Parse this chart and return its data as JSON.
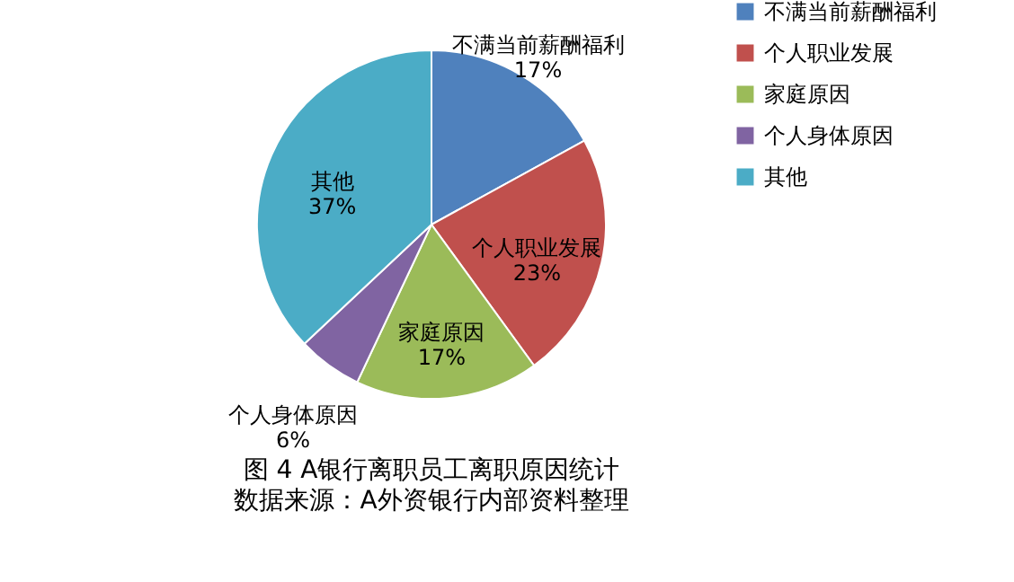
{
  "chart_data": {
    "type": "pie",
    "title": "图 4 A银行离职员工离职原因统计",
    "subtitle": "数据来源：A外资银行内部资料整理",
    "categories": [
      "不满当前薪酬福利",
      "个人职业发展",
      "家庭原因",
      "个人身体原因",
      "其他"
    ],
    "values": [
      17,
      23,
      17,
      6,
      37
    ],
    "value_labels": [
      "17%",
      "23%",
      "17%",
      "6%",
      "37%"
    ],
    "colors": [
      "#4f81bd",
      "#c0504d",
      "#9bbb59",
      "#8064a2",
      "#4bacc6"
    ],
    "legend": "right"
  }
}
